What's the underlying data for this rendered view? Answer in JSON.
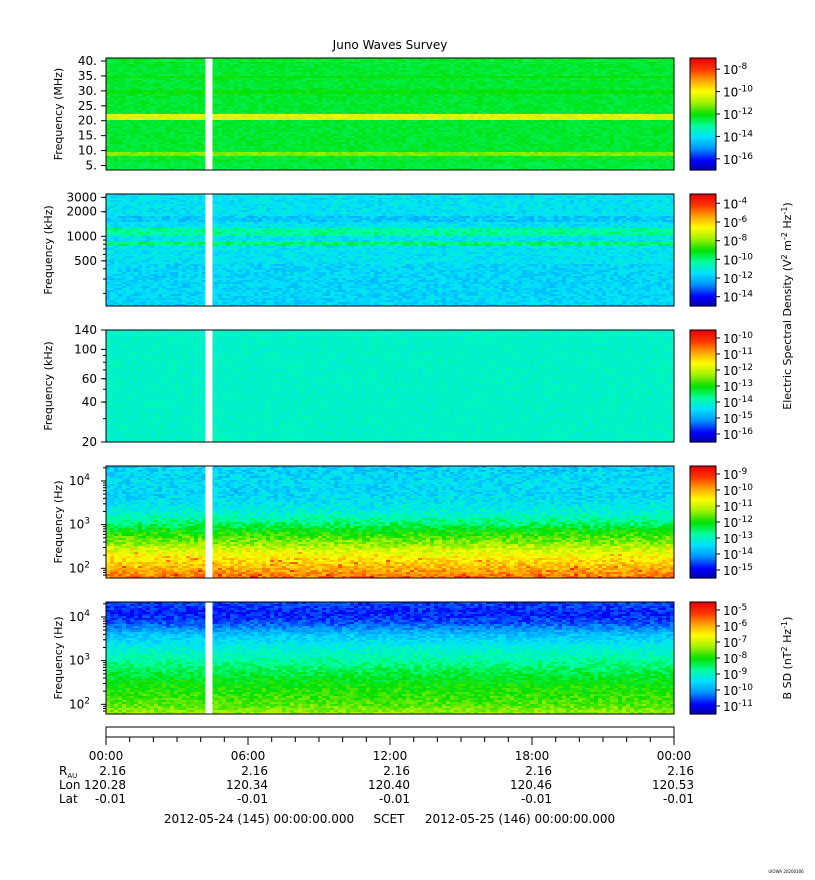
{
  "title": "Juno Waves Survey",
  "watermark": "UIOWA 20200306",
  "colors": {
    "gap": "#ffffff",
    "colormap": [
      "#0000a0",
      "#0000ff",
      "#0090ff",
      "#00e0ff",
      "#00ffa0",
      "#00e000",
      "#a0f000",
      "#ffff00",
      "#ffa000",
      "#ff3000",
      "#e00000"
    ]
  },
  "chart_data": [
    {
      "id": "panel-1",
      "type": "heatmap",
      "ylabel": "Frequency (MHz)",
      "yscale": "linear",
      "ylim": [
        3.5,
        41
      ],
      "yticks": [
        {
          "v": 40,
          "t": "40."
        },
        {
          "v": 35,
          "t": "35."
        },
        {
          "v": 30,
          "t": "30."
        },
        {
          "v": 25,
          "t": "25."
        },
        {
          "v": 20,
          "t": "20."
        },
        {
          "v": 15,
          "t": "15."
        },
        {
          "v": 10,
          "t": "10."
        },
        {
          "v": 5,
          "t": "5."
        }
      ],
      "background_level": 0.47,
      "bands": [
        {
          "f0": 3.5,
          "f1": 6.5,
          "level": 0.46
        },
        {
          "f0": 8.0,
          "f1": 9.2,
          "level": 0.58
        },
        {
          "f0": 20.5,
          "f1": 22.0,
          "level": 0.66
        },
        {
          "f0": 29.0,
          "f1": 30.0,
          "level": 0.5
        },
        {
          "f0": 34.0,
          "f1": 35.0,
          "level": 0.5
        }
      ],
      "noise": 0.02,
      "colorbar": {
        "ticks": [
          {
            "b": "10",
            "e": "-8"
          },
          {
            "b": "10",
            "e": "-10"
          },
          {
            "b": "10",
            "e": "-12"
          },
          {
            "b": "10",
            "e": "-14"
          },
          {
            "b": "10",
            "e": "-16"
          }
        ]
      }
    },
    {
      "id": "panel-2",
      "type": "heatmap",
      "ylabel": "Frequency (kHz)",
      "yscale": "log",
      "ylim": [
        140,
        3300
      ],
      "yticks": [
        {
          "v": 3000,
          "t": "3000"
        },
        {
          "v": 2000,
          "t": "2000"
        },
        {
          "v": 1000,
          "t": "1000"
        },
        {
          "v": 500,
          "t": "500"
        }
      ],
      "background_level": 0.31,
      "bands": [
        {
          "f0": 140,
          "f1": 450,
          "level": 0.29
        },
        {
          "f0": 1500,
          "f1": 1800,
          "level": 0.27
        },
        {
          "f0": 1000,
          "f1": 1250,
          "level": 0.4
        },
        {
          "f0": 760,
          "f1": 870,
          "level": 0.43
        }
      ],
      "noise": 0.04,
      "colorbar": {
        "ticks": [
          {
            "b": "10",
            "e": "-4"
          },
          {
            "b": "10",
            "e": "-6"
          },
          {
            "b": "10",
            "e": "-8"
          },
          {
            "b": "10",
            "e": "-10"
          },
          {
            "b": "10",
            "e": "-12"
          },
          {
            "b": "10",
            "e": "-14"
          }
        ]
      }
    },
    {
      "id": "panel-3",
      "type": "heatmap",
      "ylabel": "Frequency (kHz)",
      "yscale": "log",
      "ylim": [
        20,
        140
      ],
      "yticks": [
        {
          "v": 140,
          "t": "140"
        },
        {
          "v": 100,
          "t": "100"
        },
        {
          "v": 60,
          "t": "60"
        },
        {
          "v": 40,
          "t": "40"
        },
        {
          "v": 20,
          "t": "20"
        }
      ],
      "background_level": 0.36,
      "bands": [],
      "noise": 0.02,
      "colorbar": {
        "ticks": [
          {
            "b": "10",
            "e": "-10"
          },
          {
            "b": "10",
            "e": "-11"
          },
          {
            "b": "10",
            "e": "-12"
          },
          {
            "b": "10",
            "e": "-13"
          },
          {
            "b": "10",
            "e": "-14"
          },
          {
            "b": "10",
            "e": "-15"
          },
          {
            "b": "10",
            "e": "-16"
          }
        ]
      }
    },
    {
      "id": "panel-4",
      "type": "heatmap",
      "ylabel": "Frequency (Hz)",
      "yscale": "log",
      "ylim": [
        60,
        22000
      ],
      "yticks": [
        {
          "v": 10000,
          "b": "10",
          "e": "4"
        },
        {
          "v": 1000,
          "b": "10",
          "e": "3"
        },
        {
          "v": 100,
          "b": "10",
          "e": "2"
        }
      ],
      "profile": [
        [
          60,
          0.84
        ],
        [
          100,
          0.78
        ],
        [
          200,
          0.7
        ],
        [
          400,
          0.58
        ],
        [
          700,
          0.5
        ],
        [
          1000,
          0.44
        ],
        [
          2000,
          0.34
        ],
        [
          5000,
          0.29
        ],
        [
          10000,
          0.3
        ],
        [
          22000,
          0.28
        ]
      ],
      "noise": 0.05,
      "colorbar": {
        "ticks": [
          {
            "b": "10",
            "e": "-9"
          },
          {
            "b": "10",
            "e": "-10"
          },
          {
            "b": "10",
            "e": "-11"
          },
          {
            "b": "10",
            "e": "-12"
          },
          {
            "b": "10",
            "e": "-13"
          },
          {
            "b": "10",
            "e": "-14"
          },
          {
            "b": "10",
            "e": "-15"
          }
        ]
      }
    },
    {
      "id": "panel-5",
      "type": "heatmap",
      "ylabel": "Frequency (Hz)",
      "yscale": "log",
      "ylim": [
        60,
        22000
      ],
      "yticks": [
        {
          "v": 10000,
          "b": "10",
          "e": "4"
        },
        {
          "v": 1000,
          "b": "10",
          "e": "3"
        },
        {
          "v": 100,
          "b": "10",
          "e": "2"
        }
      ],
      "profile": [
        [
          60,
          0.6
        ],
        [
          100,
          0.55
        ],
        [
          300,
          0.5
        ],
        [
          800,
          0.42
        ],
        [
          2000,
          0.34
        ],
        [
          4000,
          0.26
        ],
        [
          7000,
          0.16
        ],
        [
          12000,
          0.12
        ],
        [
          22000,
          0.15
        ]
      ],
      "noise": 0.04,
      "colorbar": {
        "ticks": [
          {
            "b": "10",
            "e": "-5"
          },
          {
            "b": "10",
            "e": "-6"
          },
          {
            "b": "10",
            "e": "-7"
          },
          {
            "b": "10",
            "e": "-8"
          },
          {
            "b": "10",
            "e": "-9"
          },
          {
            "b": "10",
            "e": "-10"
          },
          {
            "b": "10",
            "e": "-11"
          }
        ]
      }
    }
  ],
  "colorbar_labels": [
    {
      "text": "Electric Spectral Density (V",
      "sup1": "2",
      "mid": " m",
      "sup2": "-2",
      "mid2": " Hz",
      "sup3": "-1",
      "end": ")"
    },
    {
      "text": "B SD (nT",
      "sup1": "2",
      "mid": " Hz",
      "sup2": "-1",
      "end": ")"
    }
  ],
  "data_gap": {
    "start_hour": 4.2,
    "end_hour": 4.5
  },
  "time_axis": {
    "hours": [
      0,
      6,
      12,
      18,
      24
    ],
    "tick_labels": [
      "00:00",
      "06:00",
      "12:00",
      "18:00",
      "00:00"
    ],
    "rows": [
      {
        "label": "R",
        "sub": "AU",
        "values": [
          "2.16",
          "2.16",
          "2.16",
          "2.16",
          "2.16"
        ]
      },
      {
        "label": "Lon",
        "sub": "",
        "values": [
          "120.28",
          "120.34",
          "120.40",
          "120.46",
          "120.53"
        ]
      },
      {
        "label": "Lat",
        "sub": "",
        "values": [
          "-0.01",
          "-0.01",
          "-0.01",
          "-0.01",
          "-0.01"
        ]
      }
    ],
    "start": "2012-05-24 (145) 00:00:00.000",
    "scet": "SCET",
    "end": "2012-05-25 (146) 00:00:00.000"
  }
}
